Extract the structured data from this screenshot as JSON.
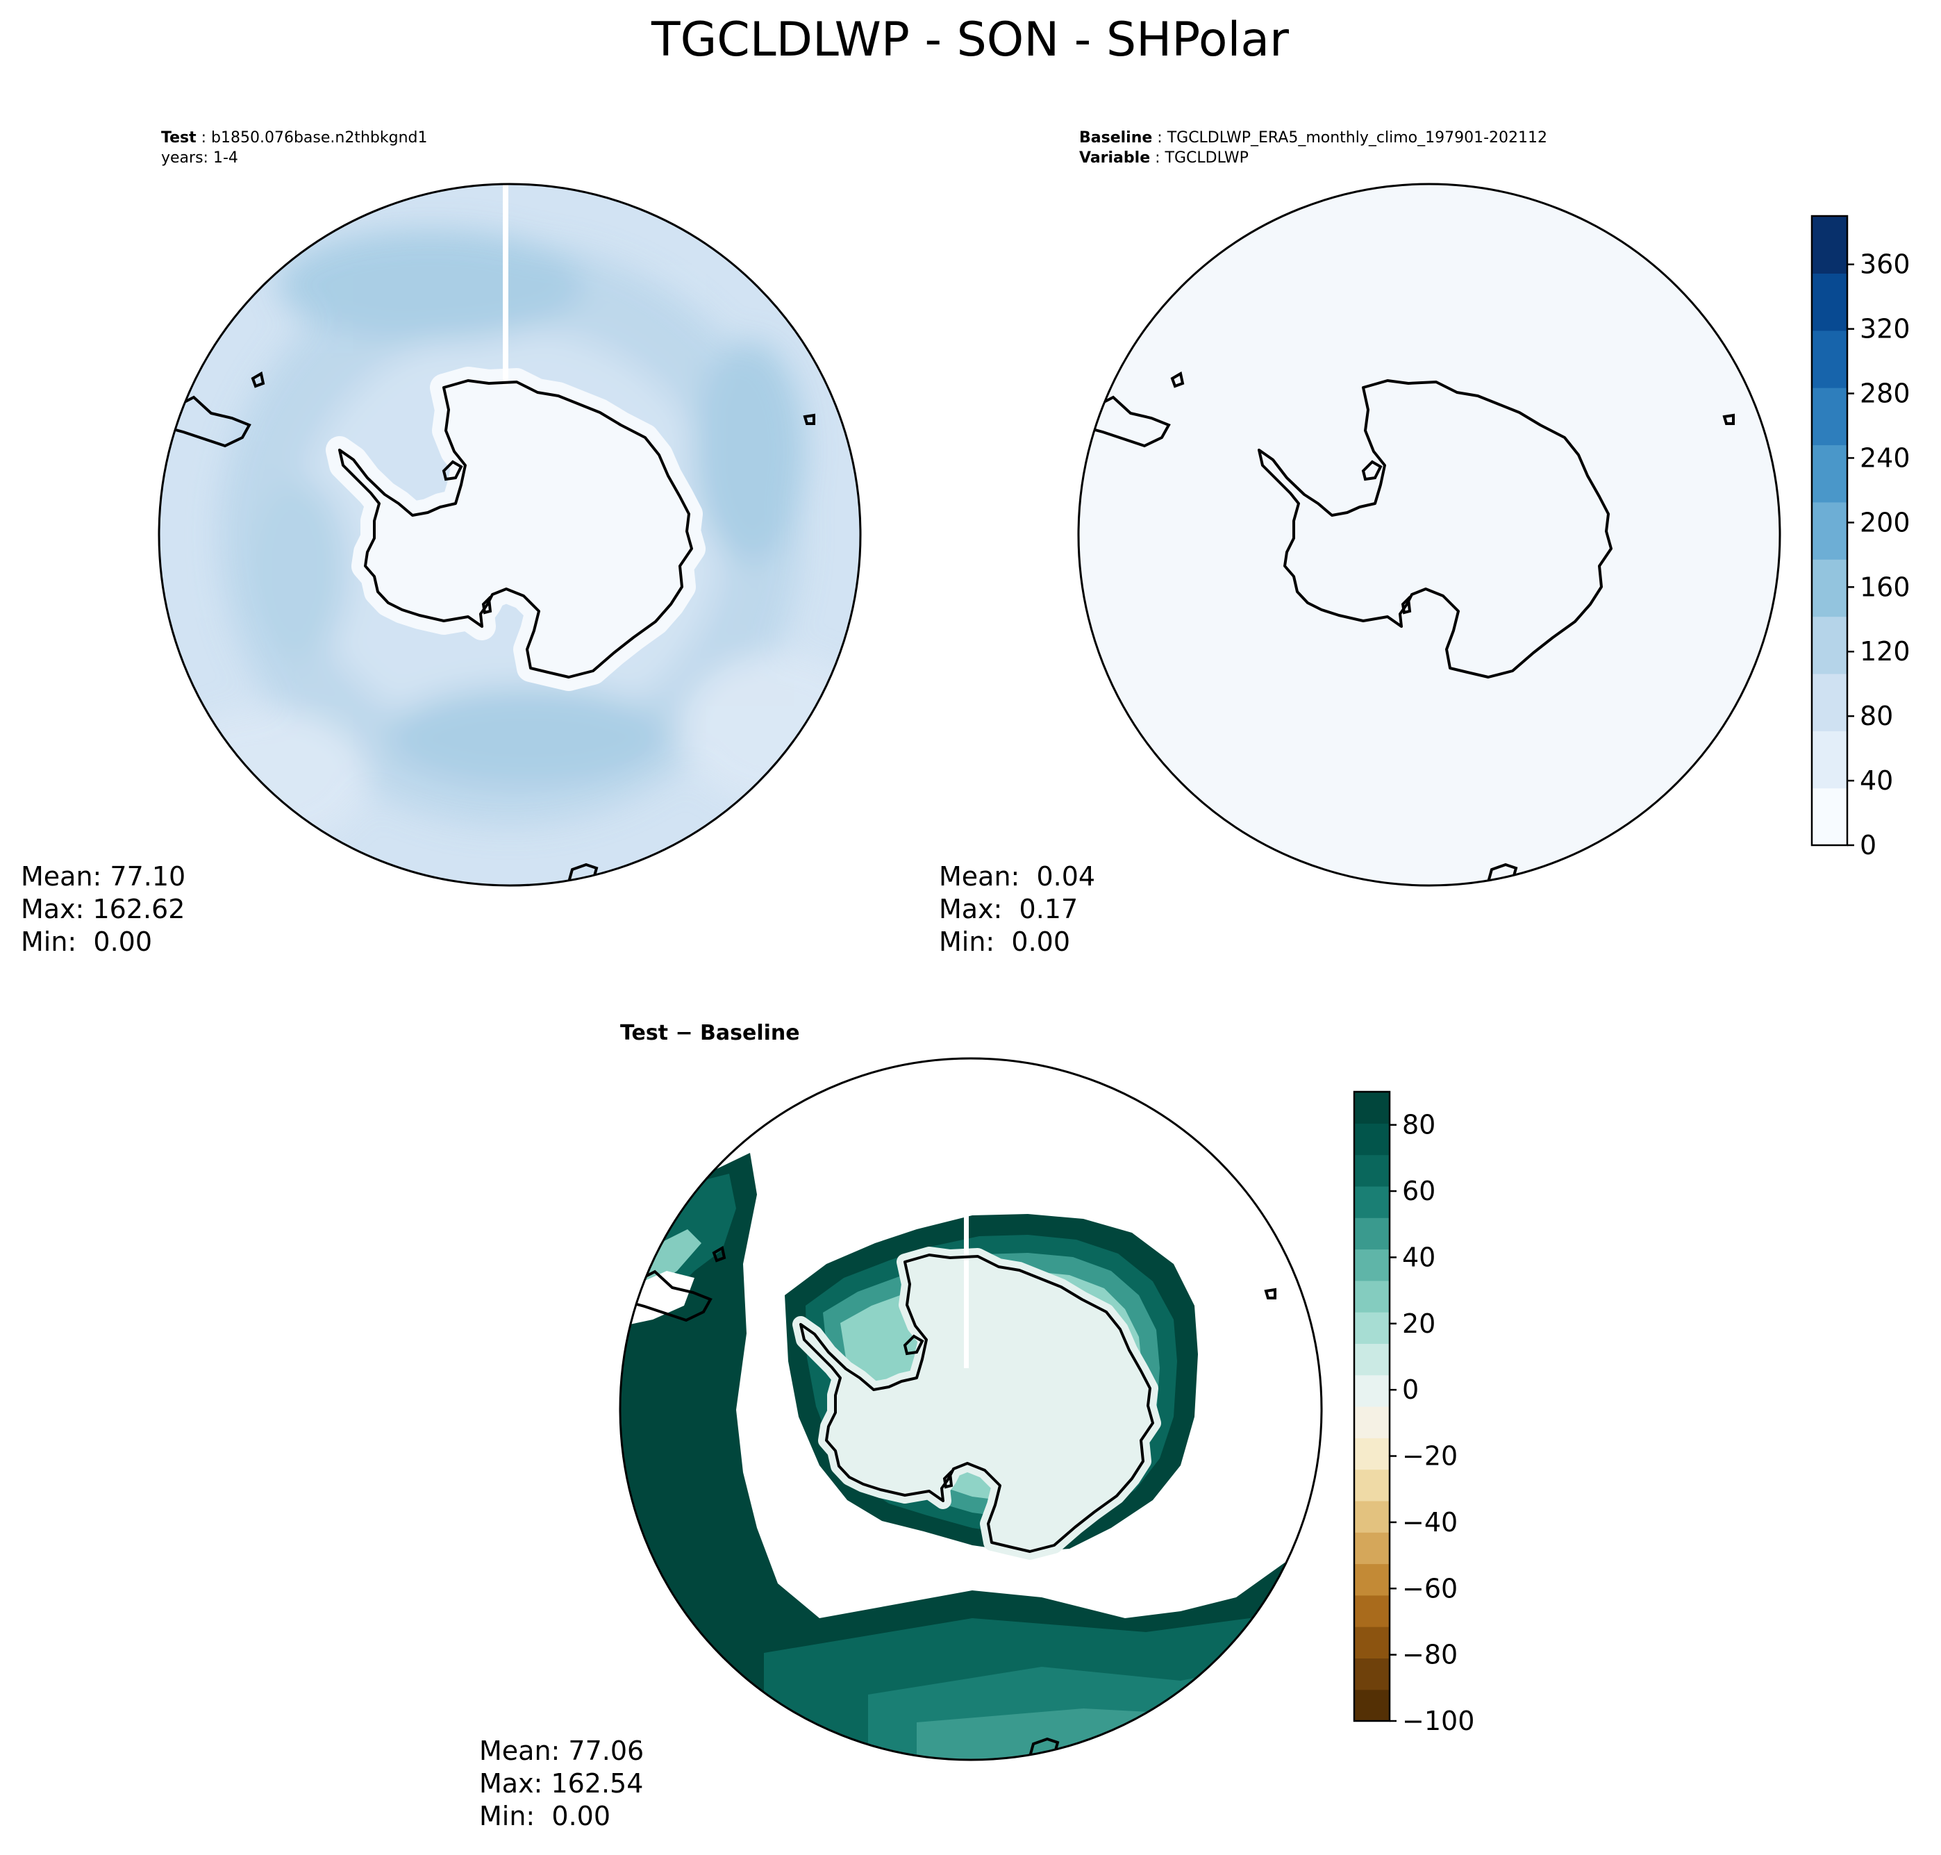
{
  "title": "TGCLDLWP - SON - SHPolar",
  "colors": {
    "land_mask": "#f5f9fd",
    "test_base": "#d2e3f3",
    "test_mid": "#bcd7eb",
    "test_dark": "#9ecae1",
    "baseline_fill": "#f4f8fc",
    "diff_dark": "#01463c",
    "diff_mid": "#0d6e64",
    "diff_light": "#8fd3c6",
    "diff_pale": "#e5f2ef"
  },
  "chart_data": [
    {
      "type": "heatmap",
      "panel": "test",
      "label_key": "Test",
      "label_value": "b1850.076base.n2thbkgnd1",
      "label_line2": "years: 1-4",
      "stats": {
        "mean": "Mean: 77.10",
        "max": "Max: 162.62",
        "min": "Min:  0.00"
      }
    },
    {
      "type": "heatmap",
      "panel": "baseline",
      "label_key": "Baseline",
      "label_value": "TGCLDLWP_ERA5_monthly_climo_197901-202112",
      "label2_key": "Variable",
      "label2_value": "TGCLDLWP",
      "stats": {
        "mean": "Mean:  0.04",
        "max": "Max:  0.17",
        "min": "Min:  0.00"
      },
      "colorbar": {
        "range": [
          0,
          390
        ],
        "ticks": [
          0,
          40,
          80,
          120,
          160,
          200,
          240,
          280,
          320,
          360
        ],
        "colors": [
          "#f7fbff",
          "#e3eef9",
          "#cfe1f2",
          "#b5d4e9",
          "#93c4de",
          "#6daed5",
          "#4a97c9",
          "#2e7ebc",
          "#1764ab",
          "#084a92",
          "#08306b"
        ]
      }
    },
    {
      "type": "heatmap",
      "panel": "difference",
      "label": "Test − Baseline",
      "stats": {
        "mean": "Mean: 77.06",
        "max": "Max: 162.54",
        "min": "Min:  0.00"
      },
      "colorbar": {
        "range": [
          -100,
          90
        ],
        "ticks": [
          -100,
          -80,
          -60,
          -40,
          -20,
          0,
          20,
          40,
          60,
          80
        ],
        "tick_labels": [
          "−100",
          "−80",
          "−60",
          "−40",
          "−20",
          "0",
          "20",
          "40",
          "60",
          "80"
        ],
        "colors": [
          "#543005",
          "#6f410b",
          "#8c5410",
          "#a96b1c",
          "#c38a36",
          "#d5a75a",
          "#e3c27f",
          "#efdaa6",
          "#f6ebcb",
          "#f5f1e4",
          "#e8f3f1",
          "#cbeae4",
          "#a7ddd3",
          "#84ccbf",
          "#5fb5a8",
          "#3a9a8e",
          "#1a7f74",
          "#0a675c",
          "#02554b",
          "#01463c"
        ]
      }
    }
  ]
}
